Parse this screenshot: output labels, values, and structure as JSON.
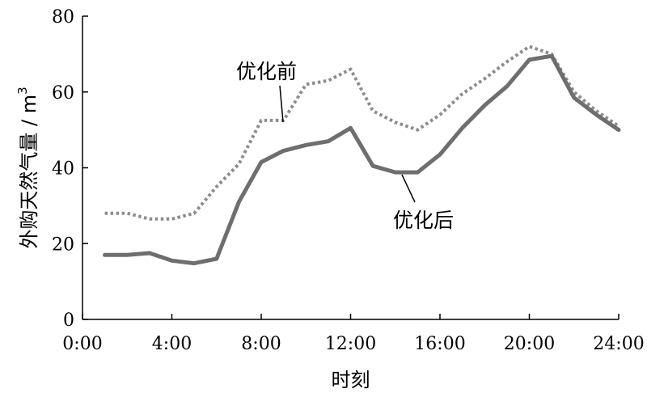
{
  "chart_data": {
    "type": "line",
    "xlabel": "时刻",
    "ylabel": "外购天然气量 / m",
    "ylabel_sup": "3",
    "xlim": [
      0,
      24
    ],
    "ylim": [
      0,
      80
    ],
    "x_ticks": [
      "0:00",
      "4:00",
      "8:00",
      "12:00",
      "16:00",
      "20:00",
      "24:00"
    ],
    "y_ticks": [
      "0",
      "20",
      "40",
      "60",
      "80"
    ],
    "grid": false,
    "x": [
      1,
      2,
      3,
      4,
      5,
      6,
      7,
      8,
      9,
      10,
      11,
      12,
      13,
      14,
      15,
      16,
      17,
      18,
      19,
      20,
      21,
      22,
      23,
      24
    ],
    "series": [
      {
        "name": "优化前",
        "style": "dotted",
        "color": "#8c8c8c",
        "values": [
          28,
          28,
          26.5,
          26.5,
          28,
          35,
          41,
          52.5,
          52.5,
          62,
          63,
          66,
          55,
          52,
          50,
          54,
          59.5,
          63.5,
          68,
          72,
          70,
          60,
          55,
          51
        ]
      },
      {
        "name": "优化后",
        "style": "solid",
        "color": "#6e6e6e",
        "values": [
          17,
          17,
          17.5,
          15.5,
          14.8,
          16,
          31,
          41.5,
          44.5,
          46,
          47,
          50.5,
          40.5,
          38.8,
          38.8,
          43.5,
          50.5,
          56.5,
          61.5,
          68.5,
          69.5,
          58.5,
          54,
          50
        ]
      }
    ]
  }
}
